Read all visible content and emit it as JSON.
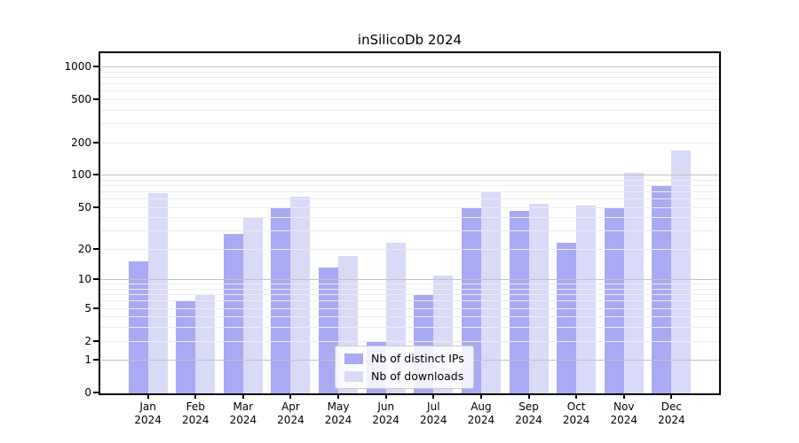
{
  "chart_data": {
    "type": "bar",
    "title": "inSilicoDb 2024",
    "xlabel": "",
    "ylabel": "",
    "categories": [
      "Jan",
      "Feb",
      "Mar",
      "Apr",
      "May",
      "Jun",
      "Jul",
      "Aug",
      "Sep",
      "Oct",
      "Nov",
      "Dec"
    ],
    "year": "2024",
    "series": [
      {
        "name": "Nb of distinct IPs",
        "color": "#a9a9f4",
        "values": [
          15,
          6,
          28,
          50,
          13,
          2,
          7,
          49,
          46,
          23,
          49,
          79
        ]
      },
      {
        "name": "Nb of downloads",
        "color": "#d9d9f8",
        "values": [
          68,
          7,
          40,
          62,
          17,
          23,
          11,
          70,
          54,
          52,
          105,
          168
        ]
      }
    ],
    "yticks": [
      0,
      1,
      2,
      5,
      10,
      20,
      50,
      100,
      200,
      500,
      1000
    ],
    "scale": "log(x+1)",
    "ylim": [
      0,
      1330
    ],
    "grid": true,
    "major_grid_values": [
      1,
      10,
      100,
      1000
    ],
    "minor_grid_values": [
      2,
      3,
      4,
      5,
      6,
      7,
      8,
      9,
      20,
      30,
      40,
      50,
      60,
      70,
      80,
      90,
      200,
      300,
      400,
      500,
      600,
      700,
      800,
      900
    ],
    "legend_position": "lower center",
    "colors": {
      "background": "#ffffff",
      "spine": "#000000",
      "grid_major": "#c3c3c3",
      "grid_minor": "#ededed"
    }
  }
}
